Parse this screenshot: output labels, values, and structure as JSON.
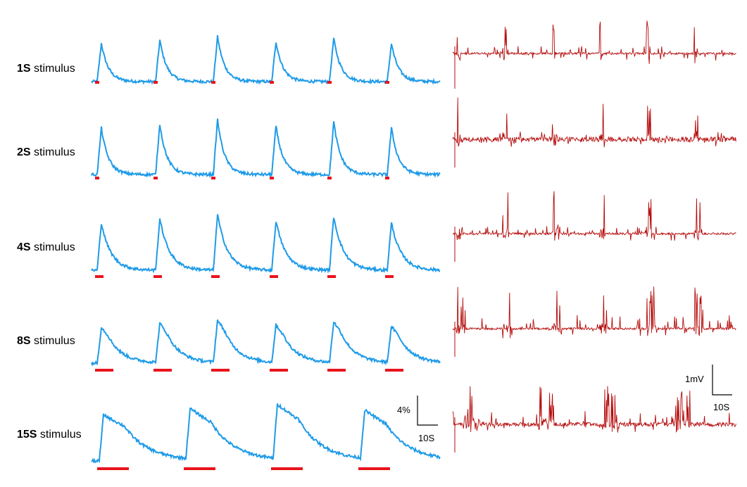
{
  "colors": {
    "calcium_trace": "#1f9be8",
    "stimulus_bar": "#e8141c",
    "electrophys_trace": "#b50a0a",
    "scale_bar": "#000000"
  },
  "rows": [
    {
      "label_bold": "1S",
      "label_rest": " stimulus",
      "stimulus_duration_s": 1,
      "n_stimuli": 6
    },
    {
      "label_bold": "2S",
      "label_rest": " stimulus",
      "stimulus_duration_s": 2,
      "n_stimuli": 6
    },
    {
      "label_bold": "4S",
      "label_rest": " stimulus",
      "stimulus_duration_s": 4,
      "n_stimuli": 6
    },
    {
      "label_bold": "8S",
      "label_rest": " stimulus",
      "stimulus_duration_s": 8,
      "n_stimuli": 6
    },
    {
      "label_bold": "15S",
      "label_rest": " stimulus",
      "stimulus_duration_s": 15,
      "n_stimuli": 4
    }
  ],
  "scale_bars": {
    "calcium": {
      "vertical_label": "4%",
      "horizontal_label": "10S"
    },
    "electrophys": {
      "vertical_label": "1mV",
      "horizontal_label": "10S"
    }
  },
  "chart_data": {
    "type": "line",
    "title": "",
    "xlabel": "",
    "ylabel": "",
    "panels": [
      {
        "name": "calcium",
        "series_per_row": [
          "1S",
          "2S",
          "4S",
          "8S",
          "15S"
        ],
        "stimulus_count": [
          6,
          6,
          6,
          6,
          4
        ]
      },
      {
        "name": "electrophysiology",
        "series_per_row": [
          "1S",
          "2S",
          "4S",
          "8S",
          "15S"
        ],
        "burst_count": [
          6,
          6,
          6,
          6,
          4
        ]
      }
    ]
  }
}
